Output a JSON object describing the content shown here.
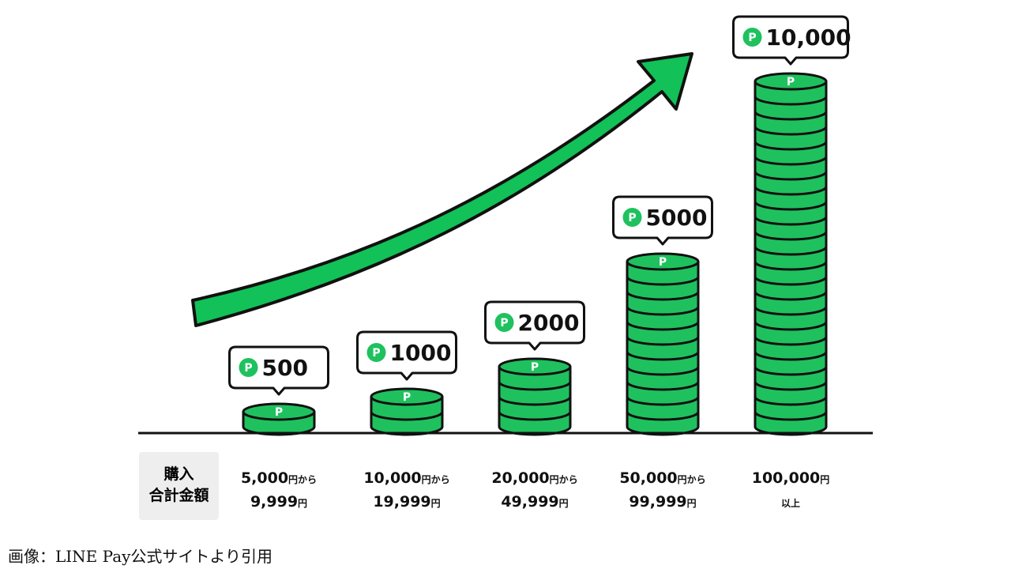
{
  "colors": {
    "accent": "#12C157",
    "coin_fill": "#1FC15E",
    "outline": "#111111",
    "coin_icon_bg": "#1FC15E",
    "label_box": "#EEEEEE"
  },
  "icons": {
    "point": "point-coin-icon",
    "trend": "trend-arrow-up-icon"
  },
  "chart_data": {
    "type": "bar",
    "title": "",
    "xlabel": "購入\n合計金額",
    "ylabel": "",
    "categories": [
      {
        "line1_num": "5,000",
        "line1_unit": "円から",
        "line2_num": "9,999",
        "line2_unit": "円"
      },
      {
        "line1_num": "10,000",
        "line1_unit": "円から",
        "line2_num": "19,999",
        "line2_unit": "円"
      },
      {
        "line1_num": "20,000",
        "line1_unit": "円から",
        "line2_num": "49,999",
        "line2_unit": "円"
      },
      {
        "line1_num": "50,000",
        "line1_unit": "円から",
        "line2_num": "99,999",
        "line2_unit": "円"
      },
      {
        "line1_num": "100,000",
        "line1_unit": "円",
        "line2_num": "",
        "line2_unit": "以上"
      }
    ],
    "values": [
      500,
      1000,
      2000,
      5000,
      10000
    ],
    "value_labels": [
      "500",
      "1000",
      "2000",
      "5000",
      "10,000"
    ],
    "coin_icon_letter": "P",
    "bubble_icon_letter": "P",
    "ylim": [
      0,
      10000
    ]
  },
  "axis_label": {
    "line1": "購入",
    "line2": "合計金額"
  },
  "caption": "画像：LINE Pay公式サイトより引用"
}
